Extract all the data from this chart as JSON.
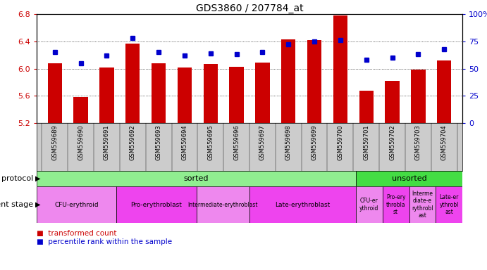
{
  "title": "GDS3860 / 207784_at",
  "samples": [
    "GSM559689",
    "GSM559690",
    "GSM559691",
    "GSM559692",
    "GSM559693",
    "GSM559694",
    "GSM559695",
    "GSM559696",
    "GSM559697",
    "GSM559698",
    "GSM559699",
    "GSM559700",
    "GSM559701",
    "GSM559702",
    "GSM559703",
    "GSM559704"
  ],
  "bar_values": [
    6.08,
    5.58,
    6.02,
    6.37,
    6.08,
    6.02,
    6.07,
    6.03,
    6.09,
    6.43,
    6.42,
    6.78,
    5.68,
    5.82,
    5.98,
    6.12
  ],
  "dot_values": [
    65,
    55,
    62,
    78,
    65,
    62,
    64,
    63,
    65,
    72,
    75,
    76,
    58,
    60,
    63,
    68
  ],
  "ylim": [
    5.2,
    6.8
  ],
  "y2lim": [
    0,
    100
  ],
  "yticks": [
    5.2,
    5.6,
    6.0,
    6.4,
    6.8
  ],
  "y2ticks": [
    0,
    25,
    50,
    75,
    100
  ],
  "bar_color": "#cc0000",
  "dot_color": "#0000cc",
  "bar_bottom": 5.2,
  "protocol_rows": [
    {
      "label": "sorted",
      "start": 0,
      "end": 12,
      "color": "#90ee90"
    },
    {
      "label": "unsorted",
      "start": 12,
      "end": 16,
      "color": "#44dd44"
    }
  ],
  "dev_stage_rows": [
    {
      "label": "CFU-erythroid",
      "start": 0,
      "end": 3,
      "color": "#ee88ee"
    },
    {
      "label": "Pro-erythroblast",
      "start": 3,
      "end": 6,
      "color": "#ee44ee"
    },
    {
      "label": "Intermediate-erythroblast",
      "start": 6,
      "end": 8,
      "color": "#ee88ee"
    },
    {
      "label": "Late-erythroblast",
      "start": 8,
      "end": 12,
      "color": "#ee44ee"
    },
    {
      "label": "CFU-er\nythroid",
      "start": 12,
      "end": 13,
      "color": "#ee88ee"
    },
    {
      "label": "Pro-ery\nthrobla\nst",
      "start": 13,
      "end": 14,
      "color": "#ee44ee"
    },
    {
      "label": "Interme\ndiate-e\nrythrobl\nast",
      "start": 14,
      "end": 15,
      "color": "#ee88ee"
    },
    {
      "label": "Late-er\nythrobl\nast",
      "start": 15,
      "end": 16,
      "color": "#ee44ee"
    }
  ],
  "tick_label_color_left": "#cc0000",
  "tick_label_color_right": "#0000cc",
  "background_xtick": "#cccccc",
  "bar_width": 0.55
}
